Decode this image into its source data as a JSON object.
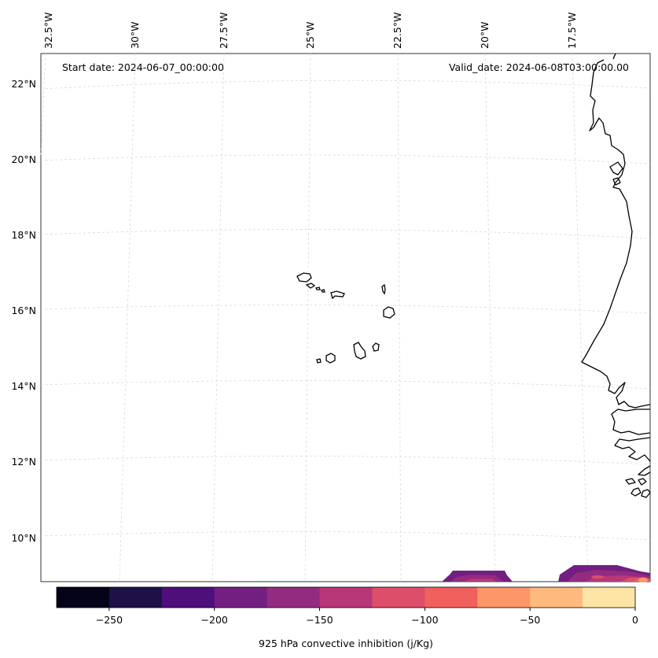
{
  "map": {
    "start_date": "Start date: 2024-06-07_00:00:00",
    "valid_date": "Valid_date: 2024-06-08T03:00:00.00",
    "lon_labels": [
      "32.5°W",
      "30°W",
      "27.5°W",
      "25°W",
      "22.5°W",
      "20°W",
      "17.5°W"
    ],
    "lat_labels": [
      "22°N",
      "20°N",
      "18°N",
      "16°N",
      "14°N",
      "12°N",
      "10°N"
    ],
    "features": {
      "islands": "Cape Verde Islands",
      "coast": "West African coastline"
    }
  },
  "colorbar": {
    "label": "925 hPa convective inhibition (j/Kg)",
    "ticks": [
      "−250",
      "−200",
      "−150",
      "−100",
      "−50",
      "0"
    ],
    "range": [
      -275,
      0
    ],
    "levels": [
      -275,
      -250,
      -225,
      -200,
      -175,
      -150,
      -125,
      -100,
      -75,
      -50,
      -25,
      0
    ],
    "colors": [
      "#04031a",
      "#1d1147",
      "#4d0f7a",
      "#721f81",
      "#932b80",
      "#b73779",
      "#dc4e69",
      "#f1605d",
      "#fd9668",
      "#feb97f",
      "#fde5a6"
    ]
  }
}
